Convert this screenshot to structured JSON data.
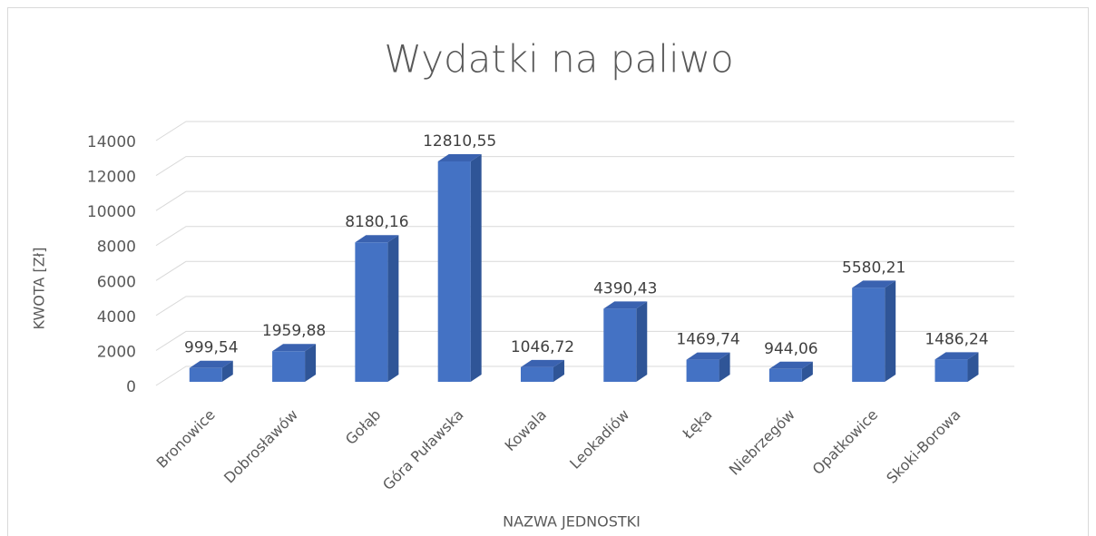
{
  "chart_data": {
    "type": "bar3d",
    "title": "Wydatki na paliwo",
    "x_label": "NAZWA JEDNOSTKI",
    "y_label": "KWOTA [Zł]",
    "categories": [
      "Bronowice",
      "Dobrosławów",
      "Gołąb",
      "Góra Puławska",
      "Kowala",
      "Leokadiów",
      "Łęka",
      "Niebrzegów",
      "Opatkowice",
      "Skoki-Borowa"
    ],
    "values": [
      999.54,
      1959.88,
      8180.16,
      12810.55,
      1046.72,
      4390.43,
      1469.74,
      944.06,
      5580.21,
      1486.24
    ],
    "value_labels": [
      "999,54",
      "1959,88",
      "8180,16",
      "12810,55",
      "1046,72",
      "4390,43",
      "1469,74",
      "944,06",
      "5580,21",
      "1486,24"
    ],
    "color": "#4472c4",
    "ylim": [
      0,
      14000
    ],
    "yticks": [
      0,
      2000,
      4000,
      6000,
      8000,
      10000,
      12000,
      14000
    ],
    "grid": true
  }
}
